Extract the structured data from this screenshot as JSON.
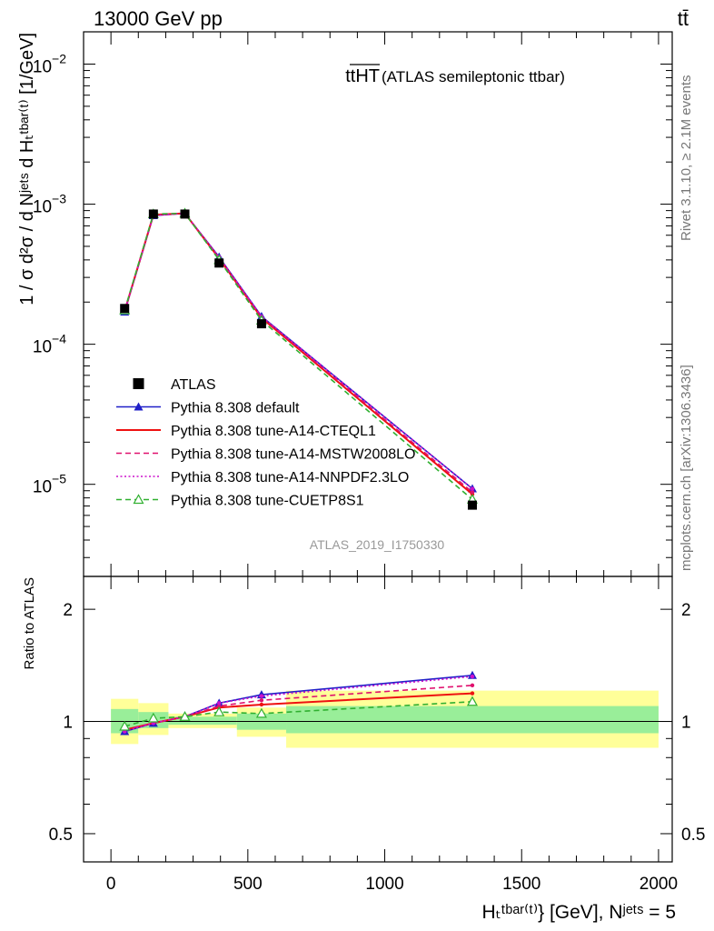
{
  "header": {
    "energy_label": "13000 GeV pp",
    "process_label": "tt̄"
  },
  "side_labels": {
    "rivet": "Rivet 3.1.10, ≥ 2.1M events",
    "mcplots": "mcplots.cern.ch [arXiv:1306.3436]"
  },
  "chart_data": [
    {
      "type": "line",
      "panel": "main",
      "title_main": "ttHT",
      "title_sub": " (ATLAS semileptonic ttbar)",
      "watermark": "ATLAS_2019_I1750330",
      "ylabel": "1 / σ d²σ / d Nʲᵉᵗˢ d Hₜᵗᵇᵃʳ⁽ᵗ⁾ [1/GeV]",
      "yscale": "log",
      "ylim": [
        2.2e-06,
        0.017
      ],
      "xlim": [
        -100,
        2050
      ],
      "y_ticks": [
        {
          "value": 0.01,
          "base": "10",
          "exp": "−2"
        },
        {
          "value": 0.001,
          "base": "10",
          "exp": "−3"
        },
        {
          "value": 0.0001,
          "base": "10",
          "exp": "−4"
        },
        {
          "value": 1e-05,
          "base": "10",
          "exp": "−5"
        }
      ],
      "x": [
        50,
        155,
        270,
        395,
        550,
        1320
      ],
      "series": [
        {
          "name": "ATLAS",
          "color": "#000000",
          "style": "data",
          "values": [
            0.00018,
            0.00085,
            0.00085,
            0.00038,
            0.00014,
            7.1e-06
          ]
        },
        {
          "name": "Pythia 8.308 default",
          "color": "#2020c8",
          "style": "solid-triangle",
          "values": [
            0.00017,
            0.00083,
            0.00086,
            0.00042,
            0.000158,
            9.3e-06
          ]
        },
        {
          "name": "Pythia 8.308 tune-A14-CTEQL1",
          "color": "#ee1111",
          "style": "solid",
          "values": [
            0.000172,
            0.00084,
            0.00086,
            0.00041,
            0.000154,
            8.5e-06
          ]
        },
        {
          "name": "Pythia 8.308 tune-A14-MSTW2008LO",
          "color": "#e0106e",
          "style": "dashed",
          "values": [
            0.000172,
            0.00084,
            0.00086,
            0.00041,
            0.000156,
            8.8e-06
          ]
        },
        {
          "name": "Pythia 8.308 tune-A14-NNPDF2.3LO",
          "color": "#cc10cc",
          "style": "dotted",
          "values": [
            0.000171,
            0.00083,
            0.00086,
            0.00042,
            0.000158,
            9.3e-06
          ]
        },
        {
          "name": "Pythia 8.308 tune-CUETP8S1",
          "color": "#30b030",
          "style": "dashed-open-triangle",
          "values": [
            0.000175,
            0.00085,
            0.00086,
            0.0004,
            0.000148,
            7.8e-06
          ]
        }
      ]
    },
    {
      "type": "line",
      "panel": "ratio",
      "ylabel": "Ratio to ATLAS",
      "xlabel": "Hₜᵗᵇᵃʳ⁽ᵗ⁾} [GeV], Nʲᵉᵗˢ = 5",
      "yscale": "log",
      "ylim": [
        0.42,
        2.45
      ],
      "xlim": [
        -100,
        2050
      ],
      "y_ticks": [
        "0.5",
        "1",
        "2"
      ],
      "x_ticks": [
        "0",
        "500",
        "1000",
        "1500",
        "2000"
      ],
      "bands": [
        {
          "x0": 0,
          "x1": 100,
          "stat": [
            0.93,
            1.08
          ],
          "total": [
            0.87,
            1.15
          ]
        },
        {
          "x0": 100,
          "x1": 210,
          "stat": [
            0.96,
            1.06
          ],
          "total": [
            0.92,
            1.12
          ]
        },
        {
          "x0": 210,
          "x1": 460,
          "stat": [
            0.98,
            1.03
          ],
          "total": [
            0.96,
            1.05
          ]
        },
        {
          "x0": 460,
          "x1": 640,
          "stat": [
            0.95,
            1.05
          ],
          "total": [
            0.91,
            1.09
          ]
        },
        {
          "x0": 640,
          "x1": 2000,
          "stat": [
            0.93,
            1.1
          ],
          "total": [
            0.85,
            1.21
          ]
        }
      ],
      "x": [
        50,
        155,
        270,
        395,
        550,
        1320
      ],
      "series": [
        {
          "name": "Pythia 8.308 default",
          "color": "#2020c8",
          "style": "solid-triangle",
          "values": [
            0.94,
            0.99,
            1.03,
            1.12,
            1.18,
            1.33
          ]
        },
        {
          "name": "Pythia 8.308 tune-A14-CTEQL1",
          "color": "#ee1111",
          "style": "solid",
          "values": [
            0.95,
            0.99,
            1.03,
            1.09,
            1.11,
            1.19
          ]
        },
        {
          "name": "Pythia 8.308 tune-A14-MSTW2008LO",
          "color": "#e0106e",
          "style": "dashed",
          "values": [
            0.95,
            0.99,
            1.03,
            1.1,
            1.14,
            1.25
          ]
        },
        {
          "name": "Pythia 8.308 tune-A14-NNPDF2.3LO",
          "color": "#cc10cc",
          "style": "dotted",
          "values": [
            0.94,
            0.99,
            1.03,
            1.12,
            1.17,
            1.32
          ]
        },
        {
          "name": "Pythia 8.308 tune-CUETP8S1",
          "color": "#30b030",
          "style": "dashed-open-triangle",
          "values": [
            0.97,
            1.02,
            1.03,
            1.06,
            1.05,
            1.13
          ]
        }
      ]
    }
  ],
  "legend_placement": "lower-left inside main panel"
}
